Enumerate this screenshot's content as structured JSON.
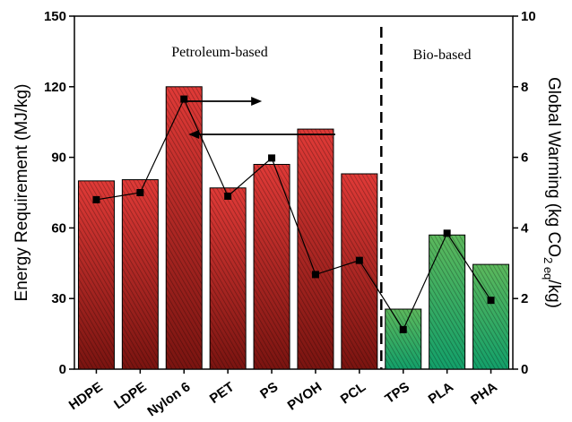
{
  "chart_data": {
    "type": "bar",
    "categories": [
      "HDPE",
      "LDPE",
      "Nylon 6",
      "PET",
      "PS",
      "PVOH",
      "PCL",
      "TPS",
      "PLA",
      "PHA"
    ],
    "groups": [
      "petro",
      "petro",
      "petro",
      "petro",
      "petro",
      "petro",
      "petro",
      "bio",
      "bio",
      "bio"
    ],
    "series": [
      {
        "axis": "left",
        "type": "bar",
        "values": [
          80,
          80.5,
          120,
          77,
          87,
          102,
          83,
          25.5,
          57,
          44.5
        ]
      },
      {
        "axis": "right",
        "type": "line",
        "values": [
          4.8,
          5.0,
          7.65,
          4.9,
          5.98,
          2.68,
          3.08,
          1.12,
          3.85,
          1.95
        ]
      }
    ],
    "ylabel": "Energy Requirement (MJ/kg)",
    "y2label": {
      "prefix": "Global Warming (kg CO",
      "sub": "2 eq",
      "suffix": "/kg)"
    },
    "ylim": [
      0,
      150
    ],
    "y2lim": [
      0,
      10
    ],
    "yticks": [
      "0",
      "30",
      "60",
      "90",
      "120",
      "150"
    ],
    "y2ticks": [
      "0",
      "2",
      "4",
      "6",
      "8",
      "10"
    ],
    "annotations": {
      "petroleum": "Petroleum-based",
      "bio": "Bio-based"
    },
    "colors": {
      "petro_top": "#e03a37",
      "petro_bottom": "#7a1410",
      "bio_top": "#5cb85c",
      "bio_bottom": "#13a06a",
      "line": "#000000"
    }
  }
}
